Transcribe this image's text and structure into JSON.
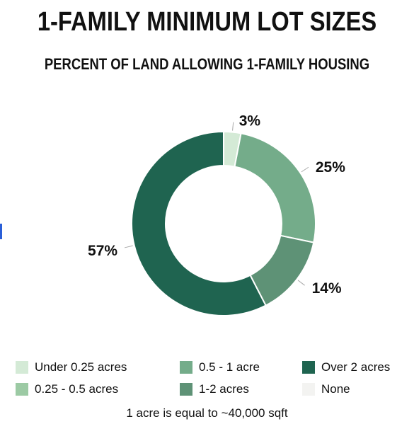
{
  "title": "1-FAMILY MINIMUM LOT SIZES",
  "subtitle": "PERCENT OF LAND ALLOWING 1-FAMILY HOUSING",
  "footnote": "1 acre is equal to ~40,000 sqft",
  "chart_data": {
    "type": "pie",
    "donut": true,
    "categories": [
      "Under 0.25 acres",
      "0.25 - 0.5 acres",
      "0.5 - 1 acre",
      "1-2 acres",
      "Over 2 acres",
      "None"
    ],
    "values": [
      3,
      0,
      25,
      14,
      57,
      0
    ],
    "labels": [
      "3%",
      "",
      "25%",
      "14%",
      "57%",
      ""
    ],
    "colors": [
      "#d4ead6",
      "#9ccaa4",
      "#74ac8a",
      "#5e9276",
      "#1f6450",
      "#f3f3f1"
    ],
    "legend_position": "bottom"
  }
}
